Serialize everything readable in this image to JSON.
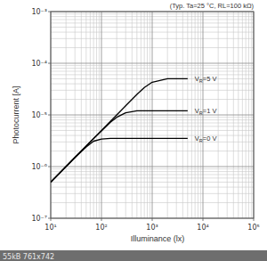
{
  "chart_data": {
    "type": "line",
    "title": "(Typ. Ta=25 °C, RL=100 kΩ)",
    "x_label": "Illuminance (lx)",
    "y_label": "Photocurrent [A]",
    "x": [
      10,
      20,
      30,
      50,
      70,
      100,
      150,
      200,
      300,
      500,
      700,
      1000,
      2000,
      5000
    ],
    "series": [
      {
        "name": "VR=5 V",
        "color": "#000000",
        "values": [
          5e-07,
          1e-06,
          1.5e-06,
          2.5e-06,
          3.5e-06,
          5e-06,
          7.5e-06,
          1e-05,
          1.5e-05,
          2.5e-05,
          3.4e-05,
          4.3e-05,
          5e-05,
          5e-05
        ]
      },
      {
        "name": "VR=1 V",
        "color": "#000000",
        "values": [
          5e-07,
          1e-06,
          1.5e-06,
          2.5e-06,
          3.5e-06,
          4.9e-06,
          7.2e-06,
          9e-06,
          1.1e-05,
          1.2e-05,
          1.2e-05,
          1.2e-05,
          1.2e-05,
          1.2e-05
        ]
      },
      {
        "name": "VR=0 V",
        "color": "#000000",
        "values": [
          5e-07,
          1e-06,
          1.5e-06,
          2.4e-06,
          3.1e-06,
          3.4e-06,
          3.5e-06,
          3.5e-06,
          3.5e-06,
          3.5e-06,
          3.5e-06,
          3.5e-06,
          3.5e-06,
          3.5e-06
        ]
      }
    ],
    "xlim": [
      10,
      100000
    ],
    "ylim": [
      1e-07,
      0.001
    ],
    "xticks": [
      {
        "value": 10,
        "label": "10¹"
      },
      {
        "value": 100,
        "label": "10²"
      },
      {
        "value": 1000,
        "label": "10³"
      },
      {
        "value": 10000,
        "label": "10⁴"
      },
      {
        "value": 100000,
        "label": "10⁵"
      }
    ],
    "yticks": [
      {
        "value": 1e-07,
        "label": "10⁻⁷"
      },
      {
        "value": 1e-06,
        "label": "10⁻⁶"
      },
      {
        "value": 1e-05,
        "label": "10⁻⁵"
      },
      {
        "value": 0.0001,
        "label": "10⁻⁴"
      },
      {
        "value": 0.001,
        "label": "10⁻³"
      }
    ],
    "log": true,
    "grid": true,
    "annotations": [
      "55kB 761x742"
    ]
  }
}
